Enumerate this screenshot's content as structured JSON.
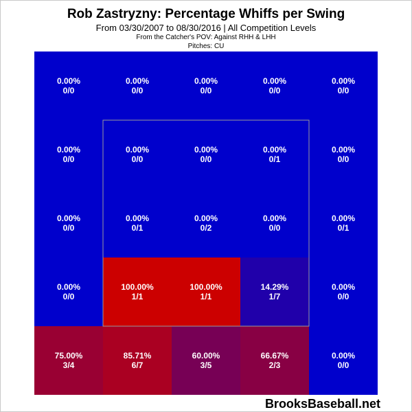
{
  "header": {
    "title": "Rob Zastryzny: Percentage Whiffs per Swing",
    "subtitle": "From 03/30/2007 to 08/30/2016 | All Competition Levels",
    "pov": "From the Catcher's POV:  Against RHH & LHH",
    "pitches": "Pitches:  CU"
  },
  "watermark": "BrooksBaseball.net",
  "chart_data": {
    "type": "heatmap",
    "title": "Rob Zastryzny: Percentage Whiffs per Swing",
    "subtitle": "From 03/30/2007 to 08/30/2016 | All Competition Levels",
    "rows": 5,
    "cols": 5,
    "strike_zone": {
      "rows": [
        1,
        3
      ],
      "cols": [
        1,
        3
      ]
    },
    "colors": {
      "low": "#0000cc",
      "high": "#cc0000"
    },
    "cells": [
      [
        {
          "pct": "0.00%",
          "count": "0/0",
          "color": "#0000cc"
        },
        {
          "pct": "0.00%",
          "count": "0/0",
          "color": "#0000cc"
        },
        {
          "pct": "0.00%",
          "count": "0/0",
          "color": "#0000cc"
        },
        {
          "pct": "0.00%",
          "count": "0/0",
          "color": "#0000cc"
        },
        {
          "pct": "0.00%",
          "count": "0/0",
          "color": "#0000cc"
        }
      ],
      [
        {
          "pct": "0.00%",
          "count": "0/0",
          "color": "#0000cc"
        },
        {
          "pct": "0.00%",
          "count": "0/0",
          "color": "#0000cc"
        },
        {
          "pct": "0.00%",
          "count": "0/0",
          "color": "#0000cc"
        },
        {
          "pct": "0.00%",
          "count": "0/1",
          "color": "#0000cc"
        },
        {
          "pct": "0.00%",
          "count": "0/0",
          "color": "#0000cc"
        }
      ],
      [
        {
          "pct": "0.00%",
          "count": "0/0",
          "color": "#0000cc"
        },
        {
          "pct": "0.00%",
          "count": "0/1",
          "color": "#0000cc"
        },
        {
          "pct": "0.00%",
          "count": "0/2",
          "color": "#0000cc"
        },
        {
          "pct": "0.00%",
          "count": "0/0",
          "color": "#0000cc"
        },
        {
          "pct": "0.00%",
          "count": "0/1",
          "color": "#0000cc"
        }
      ],
      [
        {
          "pct": "0.00%",
          "count": "0/0",
          "color": "#0000cc"
        },
        {
          "pct": "100.00%",
          "count": "1/1",
          "color": "#cc0000"
        },
        {
          "pct": "100.00%",
          "count": "1/1",
          "color": "#cc0000"
        },
        {
          "pct": "14.29%",
          "count": "1/7",
          "color": "#2000aa"
        },
        {
          "pct": "0.00%",
          "count": "0/0",
          "color": "#0000cc"
        }
      ],
      [
        {
          "pct": "75.00%",
          "count": "3/4",
          "color": "#990033"
        },
        {
          "pct": "85.71%",
          "count": "6/7",
          "color": "#aa0022"
        },
        {
          "pct": "60.00%",
          "count": "3/5",
          "color": "#770055"
        },
        {
          "pct": "66.67%",
          "count": "2/3",
          "color": "#880044"
        },
        {
          "pct": "0.00%",
          "count": "0/0",
          "color": "#0000cc"
        }
      ]
    ]
  }
}
